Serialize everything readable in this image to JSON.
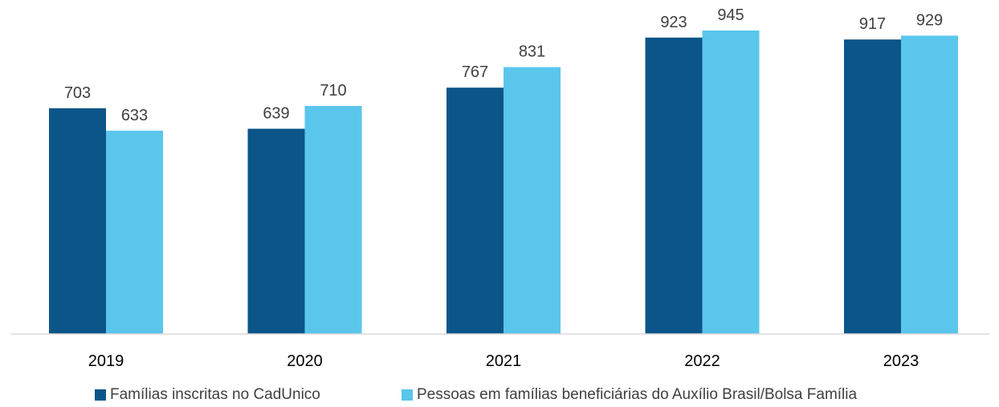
{
  "chart_data": {
    "type": "bar",
    "categories": [
      "2019",
      "2020",
      "2021",
      "2022",
      "2023"
    ],
    "series": [
      {
        "name": "Famílias inscritas no CadUnico",
        "values": [
          703,
          639,
          767,
          923,
          917
        ],
        "color": "#0c5589"
      },
      {
        "name": "Pessoas em famílias beneficiárias do Auxílio Brasil/Bolsa Família",
        "values": [
          633,
          710,
          831,
          945,
          929
        ],
        "color": "#5bc6ec"
      }
    ],
    "ylim": [
      0,
      1000
    ],
    "grid": false,
    "data_labels": true,
    "legend_position": "bottom",
    "axis_color": "#d9d9d9"
  }
}
